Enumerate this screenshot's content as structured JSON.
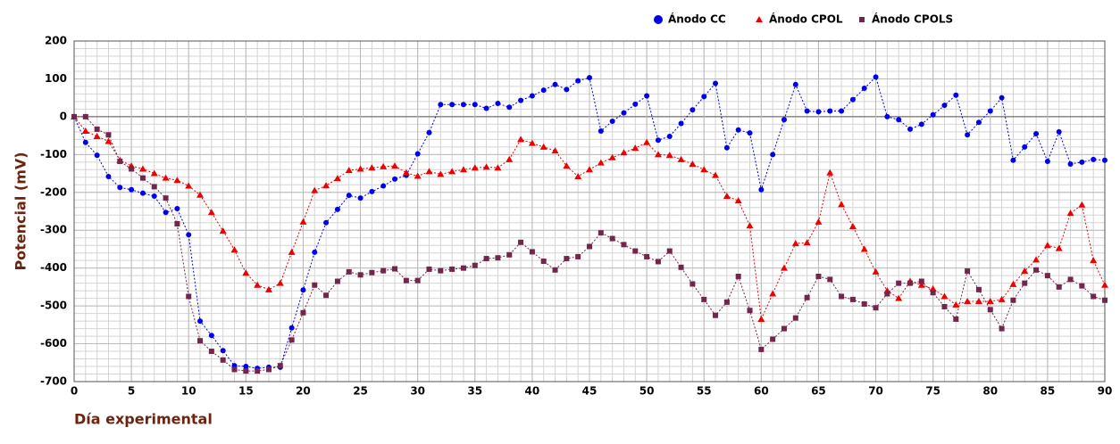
{
  "chart_data": {
    "type": "line",
    "y_label": "Potencial (mV)",
    "x_label": "Día experimental",
    "x": [
      0,
      1,
      2,
      3,
      4,
      5,
      6,
      7,
      8,
      9,
      10,
      11,
      12,
      13,
      14,
      15,
      16,
      17,
      18,
      19,
      20,
      21,
      22,
      23,
      24,
      25,
      26,
      27,
      28,
      29,
      30,
      31,
      32,
      33,
      34,
      35,
      36,
      37,
      38,
      39,
      40,
      41,
      42,
      43,
      44,
      45,
      46,
      47,
      48,
      49,
      50,
      51,
      52,
      53,
      54,
      55,
      56,
      57,
      58,
      59,
      60,
      61,
      62,
      63,
      64,
      65,
      66,
      67,
      68,
      69,
      70,
      71,
      72,
      73,
      74,
      75,
      76,
      77,
      78,
      79,
      80,
      81,
      82,
      83,
      84,
      85,
      86,
      87,
      88,
      89,
      90
    ],
    "series": [
      {
        "name": "Ánodo CC",
        "color": "#0000ee",
        "marker": "circle",
        "values": [
          0,
          -68,
          -102,
          -158,
          -187,
          -193,
          -202,
          -210,
          -253,
          -243,
          -312,
          -540,
          -578,
          -618,
          -658,
          -660,
          -665,
          -662,
          -662,
          -558,
          -458,
          -358,
          -280,
          -245,
          -208,
          -215,
          -198,
          -183,
          -165,
          -155,
          -98,
          -42,
          32,
          32,
          32,
          32,
          22,
          35,
          25,
          43,
          55,
          70,
          85,
          72,
          95,
          103,
          -38,
          -12,
          10,
          33,
          55,
          -62,
          -52,
          -18,
          18,
          53,
          88,
          -82,
          -35,
          -43,
          -193,
          -100,
          -8,
          85,
          15,
          13,
          15,
          15,
          45,
          75,
          105,
          0,
          -8,
          -33,
          -20,
          5,
          30,
          57,
          -48,
          -15,
          15,
          50,
          -115,
          -80,
          -45,
          -118,
          -40,
          -125,
          -120,
          -113,
          -115
        ]
      },
      {
        "name": "Ánodo CPOL",
        "color": "#ee0000",
        "marker": "triangle",
        "values": [
          0,
          -38,
          -52,
          -65,
          -115,
          -130,
          -138,
          -150,
          -162,
          -168,
          -183,
          -207,
          -253,
          -302,
          -352,
          -413,
          -445,
          -457,
          -440,
          -358,
          -278,
          -195,
          -182,
          -163,
          -142,
          -138,
          -135,
          -132,
          -130,
          -148,
          -157,
          -145,
          -152,
          -145,
          -140,
          -135,
          -133,
          -135,
          -113,
          -60,
          -70,
          -80,
          -90,
          -130,
          -158,
          -140,
          -122,
          -108,
          -95,
          -83,
          -68,
          -100,
          -102,
          -113,
          -125,
          -140,
          -155,
          -210,
          -222,
          -288,
          -535,
          -468,
          -400,
          -335,
          -333,
          -278,
          -148,
          -232,
          -290,
          -350,
          -410,
          -460,
          -480,
          -435,
          -445,
          -455,
          -475,
          -497,
          -488,
          -488,
          -488,
          -483,
          -443,
          -408,
          -378,
          -340,
          -348,
          -255,
          -233,
          -380,
          -445
        ]
      },
      {
        "name": "Ánodo CPOLS",
        "color": "#73264d",
        "marker": "square",
        "values": [
          0,
          0,
          -33,
          -48,
          -118,
          -138,
          -162,
          -185,
          -215,
          -283,
          -475,
          -592,
          -620,
          -643,
          -668,
          -672,
          -672,
          -668,
          -658,
          -590,
          -518,
          -445,
          -472,
          -435,
          -410,
          -418,
          -412,
          -407,
          -402,
          -433,
          -433,
          -403,
          -407,
          -403,
          -400,
          -393,
          -375,
          -373,
          -365,
          -332,
          -357,
          -382,
          -405,
          -375,
          -370,
          -343,
          -307,
          -322,
          -338,
          -355,
          -370,
          -383,
          -355,
          -398,
          -442,
          -483,
          -525,
          -490,
          -422,
          -512,
          -615,
          -588,
          -560,
          -532,
          -478,
          -422,
          -430,
          -475,
          -483,
          -495,
          -505,
          -468,
          -440,
          -440,
          -435,
          -465,
          -502,
          -535,
          -408,
          -457,
          -510,
          -560,
          -485,
          -440,
          -405,
          -420,
          -450,
          -430,
          -447,
          -475,
          -485
        ]
      }
    ],
    "xlim": [
      0,
      90
    ],
    "ylim": [
      -700,
      200
    ],
    "xticks": [
      0,
      5,
      10,
      15,
      20,
      25,
      30,
      35,
      40,
      45,
      50,
      55,
      60,
      65,
      70,
      75,
      80,
      85,
      90
    ],
    "yticks": [
      -700,
      -600,
      -500,
      -400,
      -300,
      -200,
      -100,
      0,
      100,
      200
    ],
    "grid": true,
    "minor_grid": {
      "x": 1,
      "y": 20
    },
    "legend": "top"
  }
}
